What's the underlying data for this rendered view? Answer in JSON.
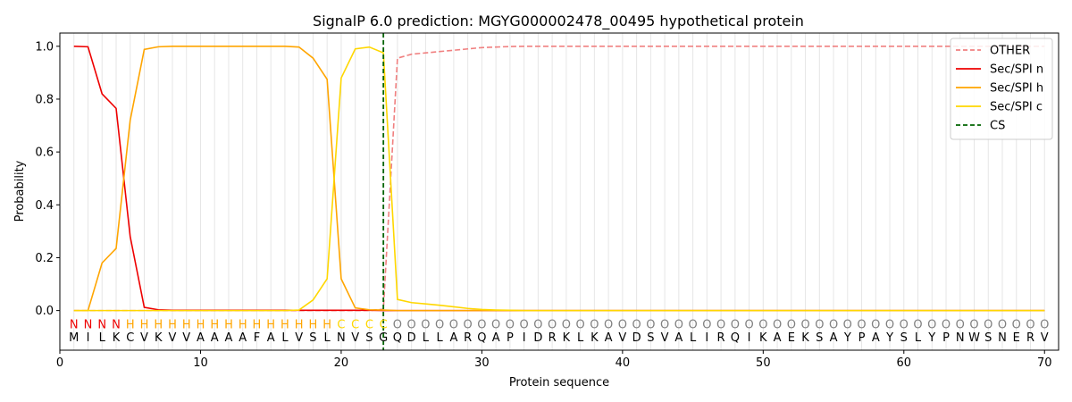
{
  "chart_data": {
    "type": "line",
    "title": "SignalP 6.0 prediction: MGYG000002478_00495 hypothetical protein",
    "xlabel": "Protein sequence",
    "ylabel": "Probability",
    "xlim": [
      0,
      71
    ],
    "ylim": [
      -0.15,
      1.05
    ],
    "xticks": [
      0,
      10,
      20,
      30,
      40,
      50,
      60,
      70
    ],
    "yticks": [
      0.0,
      0.2,
      0.4,
      0.6,
      0.8,
      1.0
    ],
    "grid": "vertical per residue",
    "legend_position": "top-right",
    "sequence": [
      "M",
      "I",
      "L",
      "K",
      "C",
      "V",
      "K",
      "V",
      "V",
      "A",
      "A",
      "A",
      "A",
      "F",
      "A",
      "L",
      "V",
      "S",
      "L",
      "N",
      "V",
      "S",
      "G",
      "Q",
      "D",
      "L",
      "L",
      "A",
      "R",
      "Q",
      "A",
      "P",
      "I",
      "D",
      "R",
      "K",
      "L",
      "K",
      "A",
      "V",
      "D",
      "S",
      "V",
      "A",
      "L",
      "I",
      "R",
      "Q",
      "I",
      "K",
      "A",
      "E",
      "K",
      "S",
      "A",
      "Y",
      "P",
      "A",
      "Y",
      "S",
      "L",
      "Y",
      "P",
      "N",
      "W",
      "S",
      "N",
      "E",
      "R",
      "V"
    ],
    "labels": [
      "N",
      "N",
      "N",
      "N",
      "H",
      "H",
      "H",
      "H",
      "H",
      "H",
      "H",
      "H",
      "H",
      "H",
      "H",
      "H",
      "H",
      "H",
      "H",
      "C",
      "C",
      "C",
      "C",
      "O",
      "O",
      "O",
      "O",
      "O",
      "O",
      "O",
      "O",
      "O",
      "O",
      "O",
      "O",
      "O",
      "O",
      "O",
      "O",
      "O",
      "O",
      "O",
      "O",
      "O",
      "O",
      "O",
      "O",
      "O",
      "O",
      "O",
      "O",
      "O",
      "O",
      "O",
      "O",
      "O",
      "O",
      "O",
      "O",
      "O",
      "O",
      "O",
      "O",
      "O",
      "O",
      "O",
      "O",
      "O",
      "O",
      "O"
    ],
    "label_colors": {
      "N": "#ee0000",
      "H": "#ffa500",
      "C": "#ffd700",
      "O": "#808080"
    },
    "cs_position": 23,
    "series": [
      {
        "name": "OTHER",
        "color": "#f08080",
        "dash": true,
        "values": [
          0,
          0,
          0,
          0,
          0,
          0,
          0,
          0,
          0,
          0,
          0,
          0,
          0,
          0,
          0,
          0,
          0,
          0,
          0,
          0,
          0,
          0,
          0.005,
          0.955,
          0.97,
          0.975,
          0.98,
          0.985,
          0.99,
          0.995,
          0.997,
          0.999,
          1,
          1,
          1,
          1,
          1,
          1,
          1,
          1,
          1,
          1,
          1,
          1,
          1,
          1,
          1,
          1,
          1,
          1,
          1,
          1,
          1,
          1,
          1,
          1,
          1,
          1,
          1,
          1,
          1,
          1,
          1,
          1,
          1,
          1,
          1,
          1,
          1,
          1
        ]
      },
      {
        "name": "Sec/SPI n",
        "color": "#ee0000",
        "dash": false,
        "values": [
          1.0,
          0.998,
          0.82,
          0.765,
          0.28,
          0.012,
          0.003,
          0.001,
          0.001,
          0.001,
          0.001,
          0.001,
          0.001,
          0.001,
          0.001,
          0.001,
          0.001,
          0.001,
          0.001,
          0.001,
          0.001,
          0.001,
          0,
          0,
          0,
          0,
          0,
          0,
          0,
          0,
          0,
          0,
          0,
          0,
          0,
          0,
          0,
          0,
          0,
          0,
          0,
          0,
          0,
          0,
          0,
          0,
          0,
          0,
          0,
          0,
          0,
          0,
          0,
          0,
          0,
          0,
          0,
          0,
          0,
          0,
          0,
          0,
          0,
          0,
          0,
          0,
          0,
          0,
          0,
          0
        ]
      },
      {
        "name": "Sec/SPI h",
        "color": "#ffa500",
        "dash": false,
        "values": [
          0,
          0,
          0.18,
          0.235,
          0.72,
          0.988,
          0.998,
          1.0,
          1.0,
          1.0,
          1.0,
          1.0,
          1.0,
          1.0,
          1.0,
          1.0,
          0.997,
          0.955,
          0.875,
          0.12,
          0.01,
          0.003,
          0.002,
          0,
          0,
          0,
          0,
          0,
          0,
          0,
          0,
          0,
          0,
          0,
          0,
          0,
          0,
          0,
          0,
          0,
          0,
          0,
          0,
          0,
          0,
          0,
          0,
          0,
          0,
          0,
          0,
          0,
          0,
          0,
          0,
          0,
          0,
          0,
          0,
          0,
          0,
          0,
          0,
          0,
          0,
          0,
          0,
          0,
          0,
          0
        ]
      },
      {
        "name": "Sec/SPI c",
        "color": "#ffd700",
        "dash": false,
        "values": [
          0,
          0,
          0,
          0,
          0,
          0,
          0,
          0,
          0,
          0,
          0,
          0,
          0,
          0,
          0,
          0,
          0.002,
          0.04,
          0.12,
          0.88,
          0.99,
          0.997,
          0.975,
          0.042,
          0.03,
          0.025,
          0.02,
          0.014,
          0.008,
          0.004,
          0.002,
          0.001,
          0,
          0,
          0,
          0,
          0,
          0,
          0,
          0,
          0,
          0,
          0,
          0,
          0,
          0,
          0,
          0,
          0,
          0,
          0,
          0,
          0,
          0,
          0,
          0,
          0,
          0,
          0,
          0,
          0,
          0,
          0,
          0,
          0,
          0,
          0,
          0,
          0,
          0
        ]
      }
    ],
    "cs_legend": {
      "name": "CS",
      "color": "#006400"
    }
  }
}
